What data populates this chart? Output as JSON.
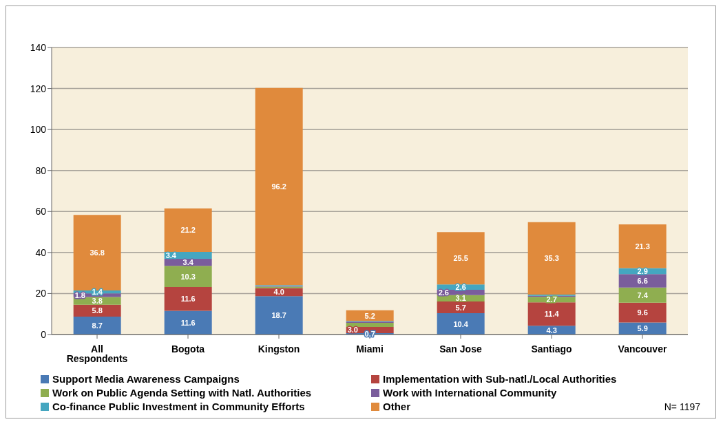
{
  "chart_data": {
    "type": "bar",
    "stacked": true,
    "categories": [
      "All Respondents",
      "Bogota",
      "Kingston",
      "Miami",
      "San Jose",
      "Santiago",
      "Vancouver"
    ],
    "series": [
      {
        "name": "Support Media Awareness Campaigns",
        "color": "#4a7ab5",
        "values": [
          8.7,
          11.6,
          18.7,
          0.7,
          10.4,
          4.3,
          5.9
        ],
        "value_labels": [
          "8.7",
          "11.6",
          "18.7",
          "0.7",
          "10.4",
          "4.3",
          "5.9"
        ]
      },
      {
        "name": "Implementation with Sub-natl./Local Authorities",
        "color": "#b5443f",
        "values": [
          5.8,
          11.6,
          4.0,
          3.0,
          5.7,
          11.4,
          9.6
        ],
        "value_labels": [
          "5.8",
          "11.6",
          "4.0",
          "3.0",
          "5.7",
          "11.4",
          "9.6"
        ]
      },
      {
        "name": "Work on Public Agenda Setting with Natl. Authorities",
        "color": "#8fae50",
        "values": [
          3.8,
          10.3,
          0.6,
          2.0,
          3.1,
          2.7,
          7.4
        ],
        "value_labels": [
          "3.8",
          "10.3",
          null,
          null,
          "3.1",
          "2.7",
          "7.4"
        ]
      },
      {
        "name": "Work with International Community",
        "color": "#7a5d9c",
        "values": [
          1.8,
          3.4,
          0.4,
          0.6,
          2.6,
          0.5,
          6.6
        ],
        "value_labels": [
          "1.8",
          "3.4",
          null,
          null,
          "2.6",
          null,
          "6.6"
        ]
      },
      {
        "name": "Co-finance Public Investment in Community Efforts",
        "color": "#45a6c0",
        "values": [
          1.4,
          3.4,
          0.4,
          0.3,
          2.6,
          0.6,
          2.9
        ],
        "value_labels": [
          "1.4",
          "3.4",
          null,
          null,
          "2.6",
          null,
          "2.9"
        ]
      },
      {
        "name": "Other",
        "color": "#e08a3c",
        "values": [
          36.8,
          21.2,
          96.2,
          5.2,
          25.5,
          35.3,
          21.3
        ],
        "value_labels": [
          "36.8",
          "21.2",
          "96.2",
          "5.2",
          "25.5",
          "35.3",
          "21.3"
        ]
      }
    ],
    "ylim": [
      0,
      140
    ],
    "yticks": [
      0,
      20,
      40,
      60,
      80,
      100,
      120,
      140
    ],
    "grid": "y",
    "legend": "bottom",
    "annotations": [
      "N= 1197"
    ]
  }
}
